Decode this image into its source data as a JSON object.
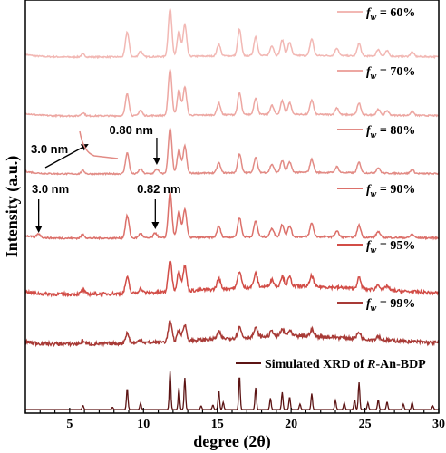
{
  "chart_data": {
    "type": "line",
    "title": "",
    "xlabel": "degree (2θ)",
    "ylabel": "Intensity (a.u.)",
    "xlim": [
      2,
      30
    ],
    "x_ticks": [
      "5",
      "10",
      "15",
      "20",
      "25",
      "30"
    ],
    "grid": false,
    "legend_placement": "right, beside each trace",
    "series": [
      {
        "name": "f_w = 60%",
        "legend_main": "f",
        "legend_sub": "w",
        "legend_rest": " = 60%",
        "color": "#f2b8b4",
        "peaks": [
          [
            5.9,
            0.6
          ],
          [
            8.9,
            5.5
          ],
          [
            9.8,
            1.3
          ],
          [
            11.8,
            10.5
          ],
          [
            12.4,
            5.5
          ],
          [
            12.8,
            7.0
          ],
          [
            15.1,
            2.6
          ],
          [
            16.5,
            5.8
          ],
          [
            17.6,
            4.2
          ],
          [
            18.7,
            2.2
          ],
          [
            19.4,
            3.4
          ],
          [
            19.9,
            2.9
          ],
          [
            21.4,
            3.7
          ],
          [
            23.1,
            1.7
          ],
          [
            24.6,
            2.8
          ],
          [
            25.9,
            1.5
          ],
          [
            26.5,
            1.2
          ],
          [
            28.2,
            1.0
          ]
        ],
        "noise": 0.15
      },
      {
        "name": "f_w = 70%",
        "legend_main": "f",
        "legend_sub": "w",
        "legend_rest": " = 70%",
        "color": "#eda7a2",
        "peaks": [
          [
            5.9,
            0.7
          ],
          [
            8.9,
            4.9
          ],
          [
            9.8,
            1.2
          ],
          [
            11.8,
            10.2
          ],
          [
            12.4,
            5.6
          ],
          [
            12.8,
            6.2
          ],
          [
            15.1,
            2.6
          ],
          [
            16.5,
            4.8
          ],
          [
            17.6,
            3.7
          ],
          [
            18.7,
            2.0
          ],
          [
            19.4,
            3.0
          ],
          [
            19.9,
            2.6
          ],
          [
            21.4,
            3.2
          ],
          [
            23.1,
            1.5
          ],
          [
            24.6,
            2.6
          ],
          [
            25.9,
            1.3
          ],
          [
            26.5,
            1.0
          ],
          [
            28.2,
            0.9
          ]
        ],
        "noise": 0.15
      },
      {
        "name": "f_w = 80%",
        "legend_main": "f",
        "legend_sub": "w",
        "legend_rest": " = 80%",
        "color": "#e28b85",
        "peaks": [
          [
            5.9,
            0.7
          ],
          [
            8.9,
            4.6
          ],
          [
            9.8,
            1.1
          ],
          [
            10.9,
            1.0
          ],
          [
            11.8,
            10.0
          ],
          [
            12.4,
            5.2
          ],
          [
            12.8,
            6.0
          ],
          [
            15.1,
            2.2
          ],
          [
            16.5,
            4.2
          ],
          [
            17.6,
            3.3
          ],
          [
            18.7,
            1.8
          ],
          [
            19.4,
            2.6
          ],
          [
            19.9,
            2.3
          ],
          [
            21.4,
            2.9
          ],
          [
            23.1,
            1.3
          ],
          [
            24.6,
            2.3
          ],
          [
            25.9,
            1.2
          ],
          [
            28.2,
            0.8
          ]
        ],
        "noise": 0.15
      },
      {
        "name": "f_w = 90%",
        "legend_main": "f",
        "legend_sub": "w",
        "legend_rest": " = 90%",
        "color": "#dc706a",
        "peaks": [
          [
            2.9,
            0.8
          ],
          [
            5.9,
            0.8
          ],
          [
            8.9,
            4.9
          ],
          [
            9.8,
            1.0
          ],
          [
            10.8,
            1.1
          ],
          [
            11.8,
            10.0
          ],
          [
            12.4,
            5.8
          ],
          [
            12.8,
            6.3
          ],
          [
            15.1,
            2.4
          ],
          [
            16.5,
            4.3
          ],
          [
            17.6,
            3.5
          ],
          [
            18.7,
            1.9
          ],
          [
            19.4,
            2.7
          ],
          [
            19.9,
            2.4
          ],
          [
            21.4,
            3.0
          ],
          [
            23.1,
            1.3
          ],
          [
            24.6,
            2.6
          ],
          [
            25.9,
            1.3
          ],
          [
            28.2,
            0.8
          ]
        ],
        "noise": 0.18
      },
      {
        "name": "f_w = 95%",
        "legend_main": "f",
        "legend_sub": "w",
        "legend_rest": " = 95%",
        "color": "#d24d47",
        "peaks": [
          [
            5.9,
            0.9
          ],
          [
            8.9,
            3.5
          ],
          [
            9.8,
            1.0
          ],
          [
            11.8,
            7.0
          ],
          [
            12.4,
            4.5
          ],
          [
            12.8,
            5.5
          ],
          [
            15.1,
            2.3
          ],
          [
            16.5,
            3.7
          ],
          [
            17.6,
            3.0
          ],
          [
            18.7,
            1.6
          ],
          [
            19.4,
            2.2
          ],
          [
            19.9,
            2.0
          ],
          [
            21.4,
            2.4
          ],
          [
            24.6,
            2.4
          ],
          [
            25.9,
            1.2
          ],
          [
            26.5,
            1.0
          ]
        ],
        "noise": 0.35
      },
      {
        "name": "f_w = 99%",
        "legend_main": "f",
        "legend_sub": "w",
        "legend_rest": " = 99%",
        "color": "#a83a36",
        "peaks": [
          [
            5.9,
            0.7
          ],
          [
            8.9,
            2.2
          ],
          [
            9.8,
            0.7
          ],
          [
            11.8,
            4.5
          ],
          [
            12.4,
            2.5
          ],
          [
            12.8,
            3.5
          ],
          [
            15.1,
            1.5
          ],
          [
            16.5,
            2.3
          ],
          [
            17.6,
            1.9
          ],
          [
            18.7,
            1.2
          ],
          [
            19.4,
            1.5
          ],
          [
            19.9,
            1.2
          ],
          [
            21.4,
            1.5
          ],
          [
            24.6,
            1.4
          ],
          [
            25.9,
            0.8
          ]
        ],
        "noise": 0.4
      },
      {
        "name": "Simulated XRD of R-An-BDP",
        "legend_pre": "Simulated XRD of ",
        "legend_italic": "R",
        "legend_post": "-An-BDP",
        "color": "#5c1414",
        "peaks": [
          [
            5.9,
            0.9
          ],
          [
            7.9,
            0.5
          ],
          [
            8.9,
            4.7
          ],
          [
            9.8,
            1.4
          ],
          [
            11.8,
            8.5
          ],
          [
            12.4,
            4.8
          ],
          [
            12.8,
            7.0
          ],
          [
            13.9,
            0.8
          ],
          [
            14.7,
            1.0
          ],
          [
            15.1,
            4.2
          ],
          [
            15.4,
            1.6
          ],
          [
            16.5,
            7.5
          ],
          [
            17.6,
            4.8
          ],
          [
            18.6,
            2.5
          ],
          [
            19.4,
            3.8
          ],
          [
            19.9,
            2.8
          ],
          [
            20.6,
            1.2
          ],
          [
            21.4,
            3.5
          ],
          [
            23.0,
            2.0
          ],
          [
            23.6,
            1.5
          ],
          [
            24.3,
            2.2
          ],
          [
            24.6,
            6.0
          ],
          [
            25.2,
            1.5
          ],
          [
            25.9,
            2.2
          ],
          [
            26.5,
            1.7
          ],
          [
            27.6,
            1.2
          ],
          [
            28.2,
            1.6
          ],
          [
            29.6,
            0.8
          ]
        ],
        "noise": 0
      }
    ],
    "annotations": [
      {
        "text": "3.0  nm",
        "trace": "f_w = 80%",
        "x": 2.9,
        "type": "inset-zoom"
      },
      {
        "text": "0.80  nm",
        "trace": "f_w = 80%",
        "x": 10.9,
        "type": "arrow-down"
      },
      {
        "text": "3.0  nm",
        "trace": "f_w = 90%",
        "x": 2.9,
        "type": "arrow-down"
      },
      {
        "text": "0.82  nm",
        "trace": "f_w = 90%",
        "x": 10.8,
        "type": "arrow-down"
      }
    ]
  }
}
